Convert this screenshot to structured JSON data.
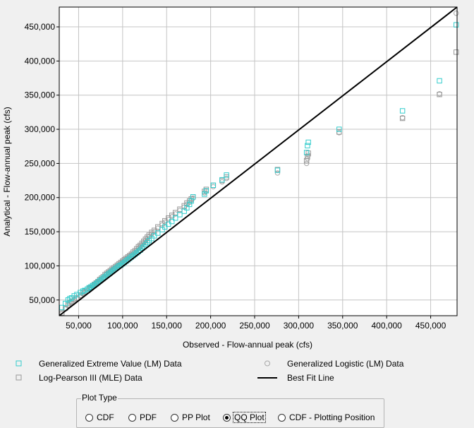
{
  "colors": {
    "gev": "#33cccc",
    "glo": "#a8a8a8",
    "lp3": "#999999",
    "best_fit": "#000000",
    "grid": "#c4c4c4",
    "background": "#ffffff"
  },
  "legend": {
    "gev": {
      "label": "Generalized Extreme Value (LM) Data",
      "marker": "square-outline-icon"
    },
    "glo": {
      "label": "Generalized Logistic (LM) Data",
      "marker": "circle-outline-icon"
    },
    "lp3": {
      "label": "Log-Pearson III (MLE) Data",
      "marker": "square-outline-icon"
    },
    "best_fit": {
      "label": "Best Fit Line",
      "marker": "line-icon"
    }
  },
  "plot_type": {
    "title": "Plot Type",
    "options": [
      {
        "label": "CDF",
        "selected": false
      },
      {
        "label": "PDF",
        "selected": false
      },
      {
        "label": "PP Plot",
        "selected": false
      },
      {
        "label": "QQ Plot",
        "selected": true
      },
      {
        "label": "CDF - Plotting Position",
        "selected": false
      }
    ]
  },
  "chart_data": {
    "type": "scatter",
    "xlabel": "Observed - Flow-annual peak (cfs)",
    "ylabel": "Analytical - Flow-annual peak (cfs)",
    "xlim": [
      28000,
      480000
    ],
    "ylim": [
      27000,
      479000
    ],
    "xticks": [
      50000,
      100000,
      150000,
      200000,
      250000,
      300000,
      350000,
      400000,
      450000
    ],
    "xtick_labels": [
      "50,000",
      "100,000",
      "150,000",
      "200,000",
      "250,000",
      "300,000",
      "350,000",
      "400,000",
      "450,000"
    ],
    "yticks": [
      50000,
      100000,
      150000,
      200000,
      250000,
      300000,
      350000,
      400000,
      450000
    ],
    "ytick_labels": [
      "50,000",
      "100,000",
      "150,000",
      "200,000",
      "250,000",
      "300,000",
      "350,000",
      "400,000",
      "450,000"
    ],
    "grid": true,
    "best_fit_line": [
      [
        28000,
        27000
      ],
      [
        480000,
        479000
      ]
    ],
    "observed": [
      31000,
      35000,
      38000,
      40000,
      42000,
      45000,
      48000,
      52000,
      55000,
      57000,
      60000,
      62000,
      64000,
      66000,
      68000,
      70000,
      72000,
      74000,
      76000,
      78000,
      80000,
      82000,
      84000,
      86000,
      88000,
      90000,
      92000,
      94000,
      96000,
      98000,
      100000,
      102000,
      104000,
      106000,
      108000,
      110000,
      112000,
      114000,
      116000,
      118000,
      120000,
      122000,
      124000,
      126000,
      128000,
      130000,
      133000,
      136000,
      140000,
      145000,
      148000,
      152000,
      156000,
      160000,
      165000,
      170000,
      173000,
      176000,
      178000,
      180000,
      193000,
      195000,
      203000,
      213000,
      218000,
      276000,
      309000,
      310000,
      311000,
      346000,
      418000,
      460000,
      479000
    ],
    "series": [
      {
        "name": "Generalized Extreme Value (LM) Data",
        "marker": "square",
        "values": [
          39000,
          45000,
          50000,
          52000,
          53000,
          56000,
          58000,
          61000,
          63000,
          64000,
          66000,
          68000,
          69000,
          71000,
          72000,
          74000,
          76000,
          78000,
          80000,
          82000,
          84000,
          86000,
          88000,
          90000,
          92000,
          94000,
          96000,
          98000,
          100000,
          101000,
          103000,
          105000,
          107000,
          109000,
          111000,
          113000,
          115000,
          117000,
          119000,
          121000,
          123000,
          126000,
          128000,
          131000,
          134000,
          137000,
          140000,
          144000,
          148000,
          153000,
          157000,
          161000,
          165000,
          170000,
          175000,
          180000,
          185000,
          190000,
          195000,
          201000,
          205000,
          210000,
          218000,
          226000,
          233000,
          240000,
          266000,
          276000,
          281000,
          300000,
          327000,
          371000,
          453000
        ]
      },
      {
        "name": "Generalized Logistic (LM) Data",
        "marker": "circle",
        "values": [
          30000,
          37000,
          42000,
          45000,
          47000,
          50000,
          52000,
          56000,
          59000,
          61000,
          63000,
          66000,
          68000,
          70000,
          72000,
          74000,
          76000,
          79000,
          81000,
          83000,
          86000,
          88000,
          90000,
          92000,
          94000,
          96000,
          98000,
          100000,
          102000,
          104000,
          106000,
          108000,
          110000,
          112000,
          114000,
          116000,
          118000,
          120000,
          123000,
          126000,
          128000,
          131000,
          134000,
          137000,
          140000,
          143000,
          147000,
          150000,
          155000,
          160000,
          164000,
          168000,
          172000,
          176000,
          181000,
          186000,
          190000,
          193000,
          196000,
          199000,
          207000,
          210000,
          216000,
          223000,
          228000,
          236000,
          250000,
          257000,
          262000,
          295000,
          317000,
          352000,
          470000
        ]
      },
      {
        "name": "Log-Pearson III (MLE) Data",
        "marker": "square",
        "values": [
          31000,
          38000,
          43000,
          46000,
          48000,
          51000,
          53000,
          57000,
          60000,
          62000,
          64000,
          67000,
          69000,
          71000,
          73000,
          75000,
          77000,
          80000,
          82000,
          84000,
          87000,
          89000,
          91000,
          93000,
          95000,
          97000,
          99000,
          101000,
          103000,
          105000,
          107000,
          109000,
          111000,
          113000,
          115000,
          117000,
          120000,
          122000,
          125000,
          128000,
          130000,
          133000,
          136000,
          139000,
          142000,
          145000,
          149000,
          152000,
          157000,
          162000,
          166000,
          170000,
          174000,
          178000,
          183000,
          188000,
          192000,
          195000,
          198000,
          201000,
          209000,
          212000,
          218000,
          225000,
          230000,
          241000,
          254000,
          260000,
          265000,
          296000,
          316000,
          351000,
          413000
        ]
      }
    ]
  }
}
